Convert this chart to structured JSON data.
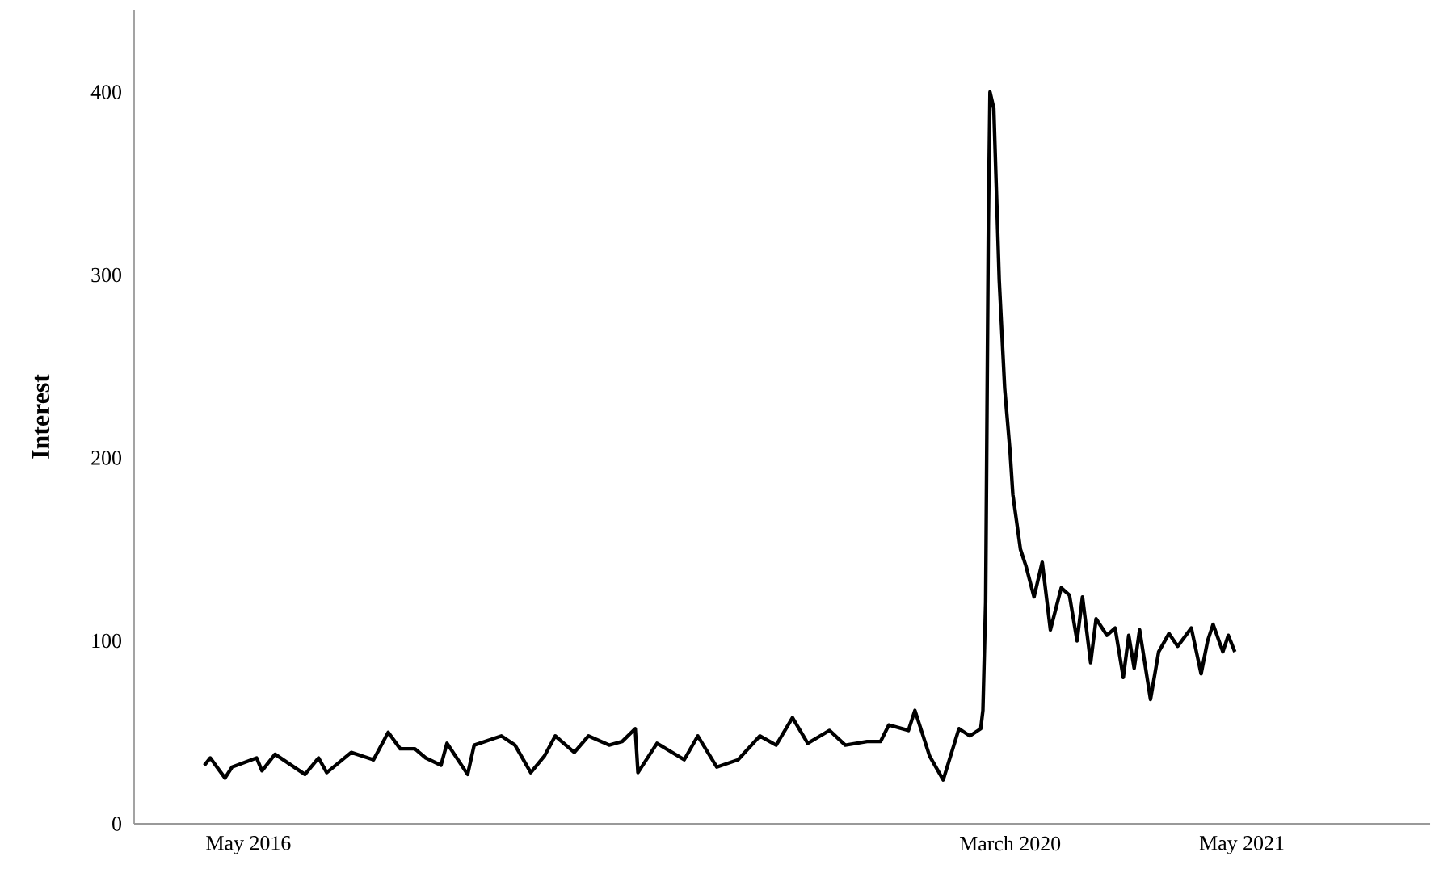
{
  "chart_data": {
    "type": "line",
    "ylabel": "Interest",
    "x": [
      "2016-02-10",
      "2016-02-21",
      "2016-03-19",
      "2016-04-01",
      "2016-05-16",
      "2016-05-26",
      "2016-06-19",
      "2016-08-13",
      "2016-09-07",
      "2016-09-22",
      "2016-11-06",
      "2016-12-17",
      "2017-01-13",
      "2017-02-04",
      "2017-03-03",
      "2017-03-23",
      "2017-04-20",
      "2017-05-01",
      "2017-06-08",
      "2017-06-20",
      "2017-08-09",
      "2017-09-03",
      "2017-10-02",
      "2017-10-27",
      "2017-11-16",
      "2017-12-21",
      "2018-01-16",
      "2018-02-23",
      "2018-03-19",
      "2018-04-12",
      "2018-04-17",
      "2018-05-22",
      "2018-07-11",
      "2018-08-05",
      "2018-09-09",
      "2018-10-18",
      "2018-11-27",
      "2018-12-27",
      "2019-01-26",
      "2019-02-23",
      "2019-04-04",
      "2019-05-03",
      "2019-06-12",
      "2019-07-07",
      "2019-07-22",
      "2019-08-27",
      "2019-09-08",
      "2019-10-05",
      "2019-10-30",
      "2019-11-28",
      "2019-12-18",
      "2020-01-07",
      "2020-01-11",
      "2020-01-16",
      "2020-01-21",
      "2020-01-24",
      "2020-01-31",
      "2020-02-10",
      "2020-02-20",
      "2020-03-01",
      "2020-03-06",
      "2020-03-20",
      "2020-03-30",
      "2020-04-14",
      "2020-04-29",
      "2020-05-14",
      "2020-06-03",
      "2020-06-18",
      "2020-07-02",
      "2020-07-12",
      "2020-07-27",
      "2020-08-06",
      "2020-08-26",
      "2020-09-10",
      "2020-09-25",
      "2020-10-05",
      "2020-10-15",
      "2020-10-25",
      "2020-11-14",
      "2020-11-29",
      "2020-12-18",
      "2021-01-03",
      "2021-01-28",
      "2021-02-15",
      "2021-02-27",
      "2021-03-09",
      "2021-03-27",
      "2021-04-06",
      "2021-04-18"
    ],
    "series": [
      {
        "color": "#000000",
        "values": [
          32,
          36,
          25,
          31,
          36,
          29,
          38,
          27,
          36,
          28,
          39,
          35,
          50,
          41,
          41,
          36,
          32,
          44,
          27,
          43,
          48,
          43,
          28,
          37,
          48,
          39,
          48,
          43,
          45,
          52,
          28,
          44,
          35,
          48,
          31,
          35,
          48,
          43,
          58,
          44,
          51,
          43,
          45,
          45,
          54,
          51,
          62,
          37,
          24,
          52,
          48,
          52,
          62,
          121,
          327,
          400,
          391,
          297,
          238,
          203,
          180,
          150,
          141,
          124,
          143,
          106,
          129,
          125,
          100,
          124,
          88,
          112,
          103,
          107,
          80,
          103,
          85,
          106,
          68,
          94,
          104,
          97,
          107,
          82,
          100,
          109,
          94,
          103,
          94
        ]
      }
    ],
    "xlim": [
      "2015-10-04",
      "2022-04-12"
    ],
    "xticks": [
      {
        "value": "2016-05-01",
        "label": "May 2016"
      },
      {
        "value": "2020-03-01",
        "label": "March 2020"
      },
      {
        "value": "2021-05-01",
        "label": "May 2021"
      }
    ],
    "ylim": [
      0,
      445
    ],
    "yticks": [
      0,
      100,
      200,
      300,
      400
    ],
    "grid": false,
    "marker": "none",
    "line_style": "solid"
  }
}
